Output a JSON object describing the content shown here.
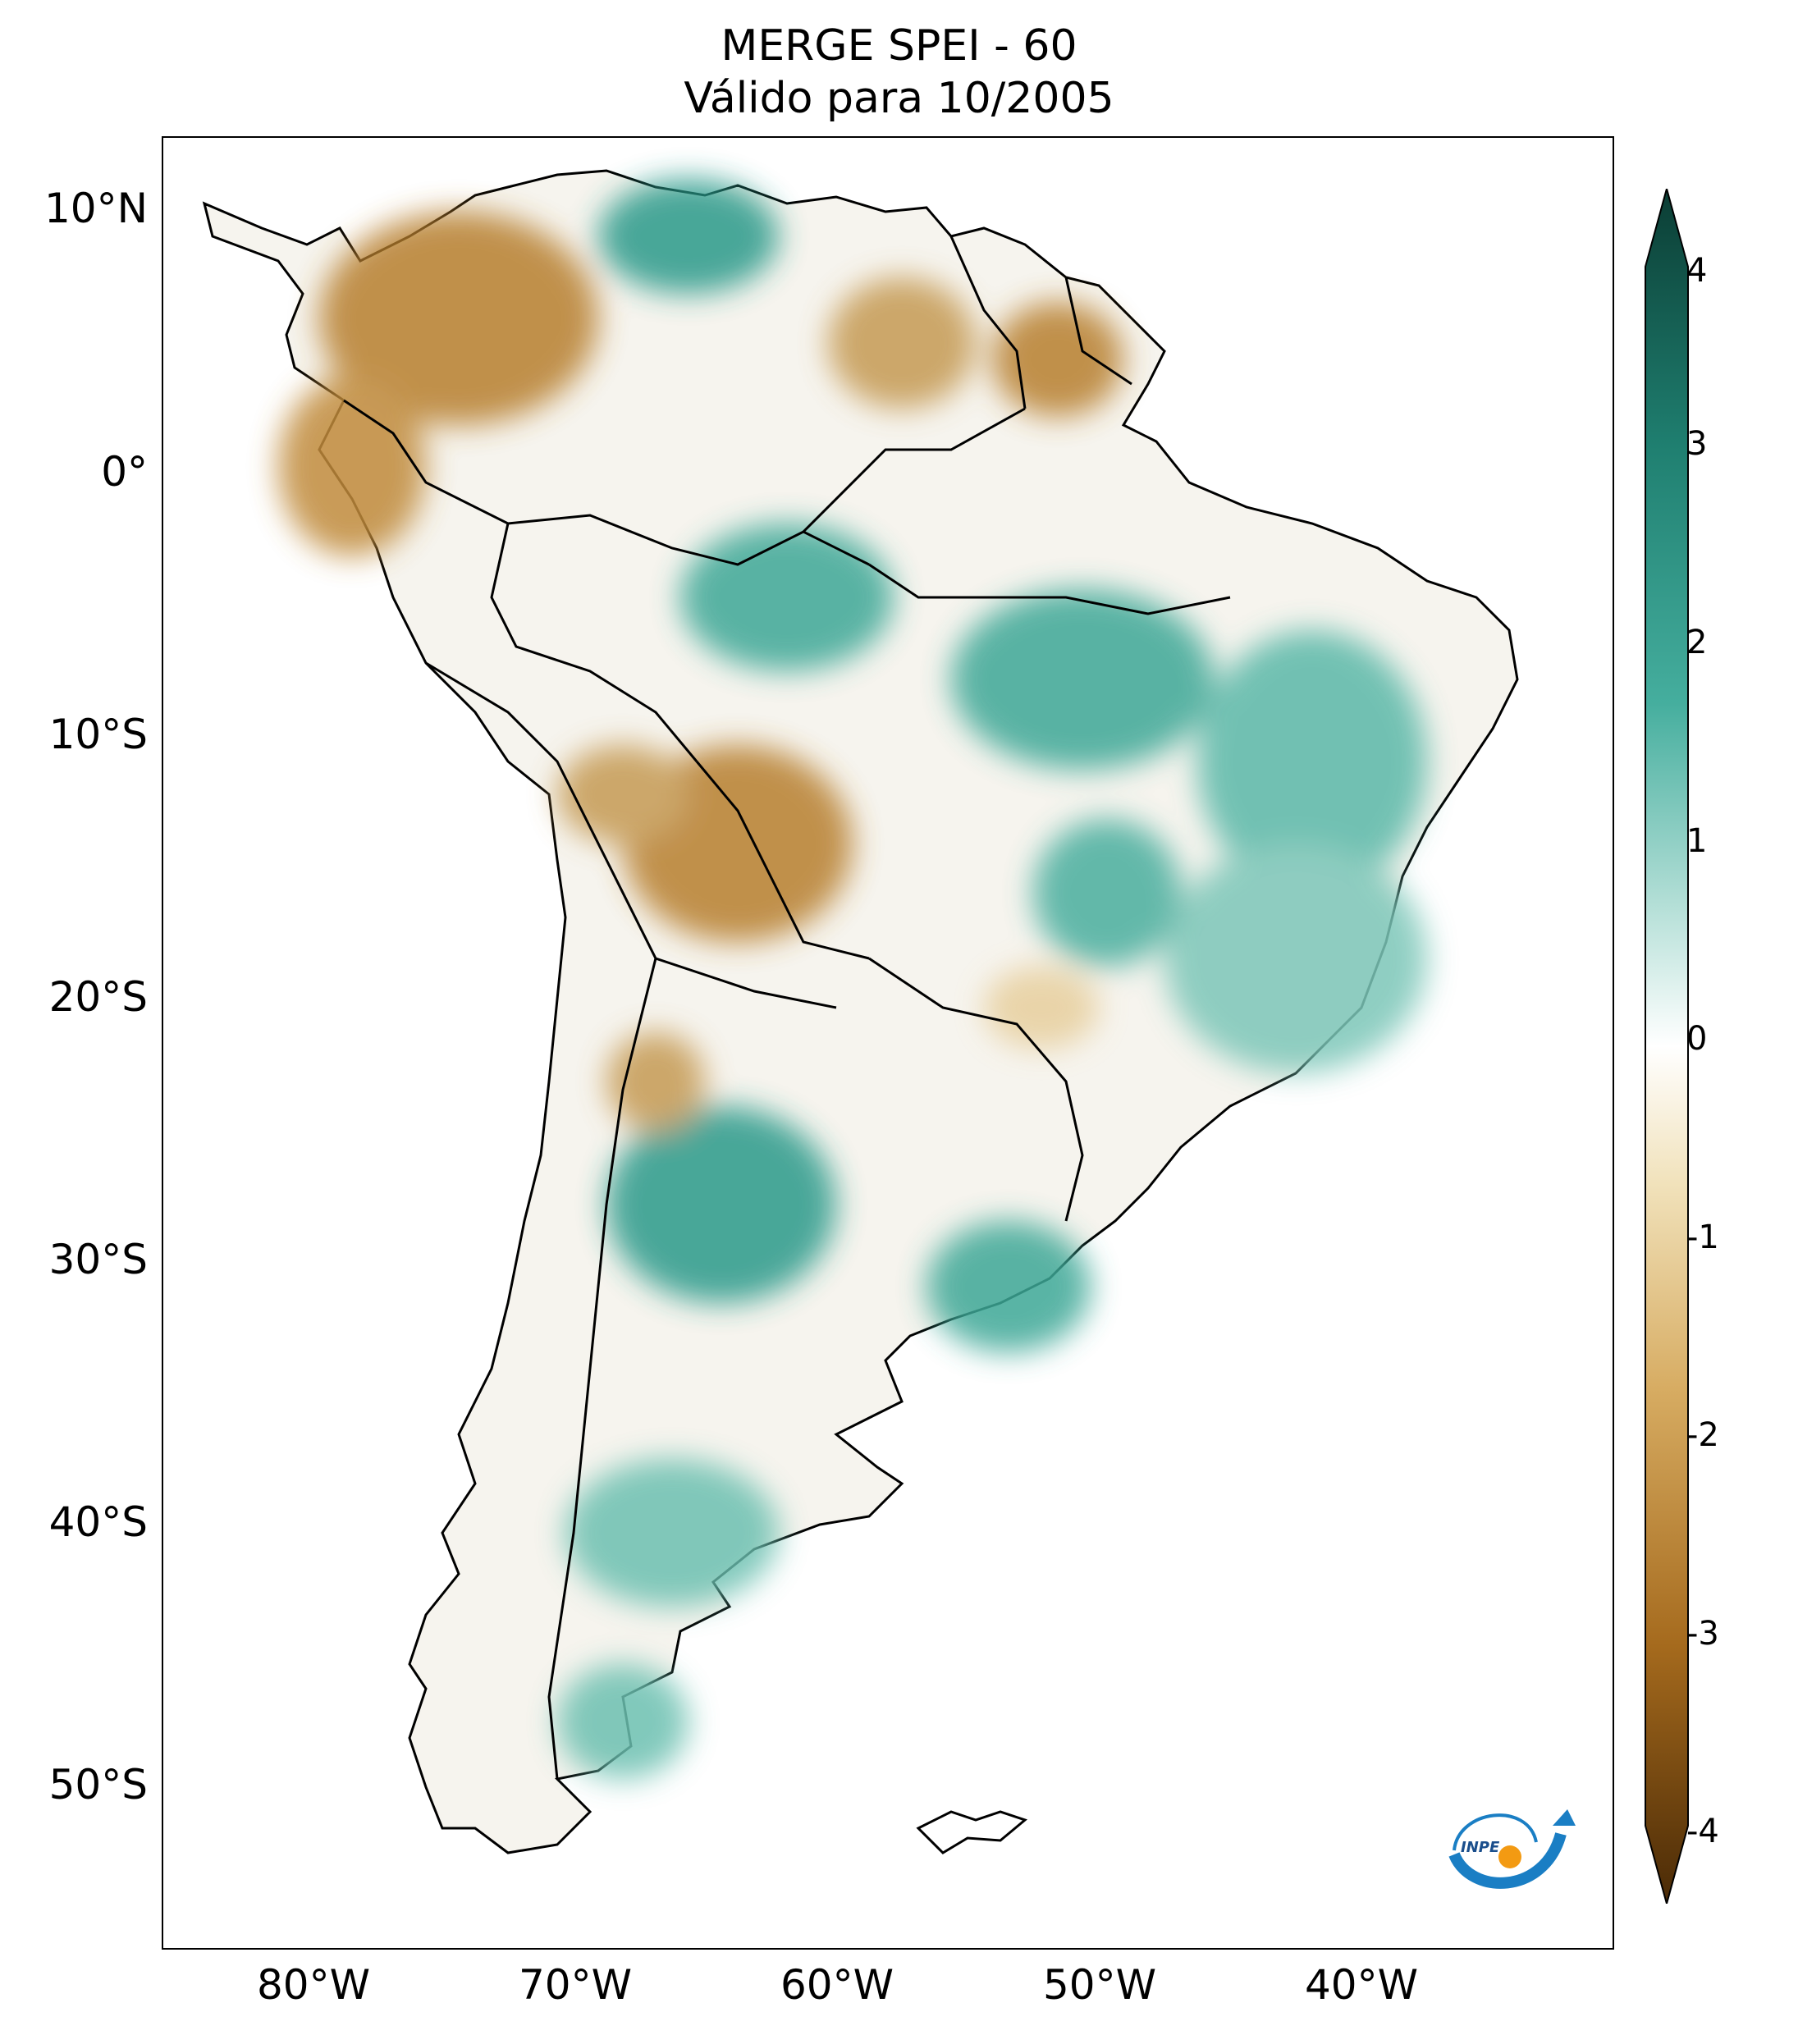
{
  "title": {
    "line1": "MERGE   SPEI - 60",
    "line2": "Válido para 10/2005"
  },
  "lat_ticks": [
    "10°N",
    "0°",
    "10°S",
    "20°S",
    "30°S",
    "40°S",
    "50°S"
  ],
  "lon_ticks": [
    "80°W",
    "70°W",
    "60°W",
    "50°W",
    "40°W"
  ],
  "colorbar": {
    "ticks": [
      "4",
      "3",
      "2",
      "1",
      "0",
      "-1",
      "-2",
      "-3",
      "-4"
    ],
    "colors": {
      "max": "#0b3d34",
      "wet": "#2a9a8a",
      "neutral": "#ffffff",
      "dry": "#c08a3a",
      "min": "#4a2a06"
    }
  },
  "logo": {
    "text": "INPE"
  },
  "map": {
    "land_color": "#f6f4ee",
    "wet_color": "#3ea796",
    "dry_color": "#b77f2f",
    "border_color": "#000000"
  }
}
